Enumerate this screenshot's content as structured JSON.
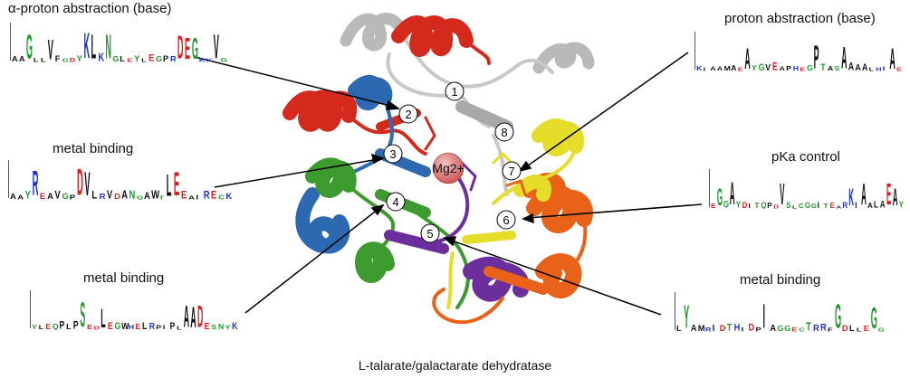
{
  "caption": "L-talarate/galactarate dehydratase",
  "metal_ion_label": "Mg2+",
  "residue_markers": [
    "1",
    "2",
    "3",
    "4",
    "5",
    "6",
    "7",
    "8"
  ],
  "annotations": [
    {
      "id": "a1",
      "label": "α-proton abstraction (base)",
      "logo": "AAGLLVFGDYKLKNGLEYLEGPRDEGKKVG"
    },
    {
      "id": "a2",
      "label": "metal binding",
      "logo": "AAYREAVGPDVLRVDANQAWTLEEAIRECK"
    },
    {
      "id": "a3",
      "label": "metal binding",
      "logo": "YLEQPLPSEDLEGWHELRPIPLAADESNYK"
    },
    {
      "id": "a4",
      "label": "proton abstraction (base)",
      "logo": "KIAAMAEAYGVEAPHEGPTASAAAALHIAE"
    },
    {
      "id": "a5",
      "label": "pKa control",
      "logo": "EGGAYDITQPDVSLCGGITEARKIAALAEAY"
    },
    {
      "id": "a6",
      "label": "metal binding",
      "logo": "LYAMRIDTHIDPIAGGECTRRFGDLLEGG"
    }
  ],
  "colors": {
    "helix_red": "#d42a1e",
    "helix_blue": "#2d69b1",
    "helix_green": "#3d9a2e",
    "helix_purple": "#6b2e9c",
    "helix_orange": "#e8621a",
    "helix_yellow": "#e6dc2a",
    "coil_gray": "#c8c8c8",
    "metal_pink": "#e58080"
  }
}
